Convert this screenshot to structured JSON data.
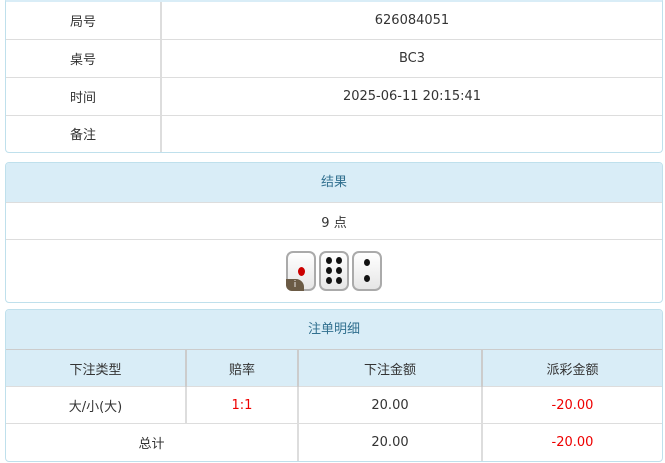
{
  "info": {
    "rows": [
      {
        "label": "局号",
        "value": "626084051"
      },
      {
        "label": "桌号",
        "value": "BC3"
      },
      {
        "label": "时间",
        "value": "2025-06-11 20:15:41"
      },
      {
        "label": "备注",
        "value": ""
      }
    ]
  },
  "result": {
    "title": "结果",
    "points": "9 点",
    "dice": [
      1,
      6,
      2
    ],
    "info_badge": "i"
  },
  "bets": {
    "title": "注单明细",
    "columns": [
      "下注类型",
      "赔率",
      "下注金额",
      "派彩金额"
    ],
    "rows": [
      {
        "type": "大/小(大)",
        "odds": "1:1",
        "amount": "20.00",
        "payout": "-20.00"
      }
    ],
    "total": {
      "label": "总计",
      "amount": "20.00",
      "payout": "-20.00"
    }
  }
}
